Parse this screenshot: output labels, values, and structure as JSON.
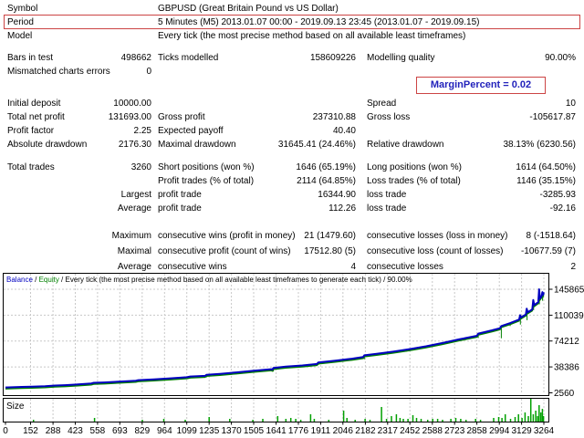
{
  "report": {
    "margin_note": "MarginPercent = 0.02",
    "sections": [
      {
        "rows": [
          {
            "l1": "Symbol",
            "v2l": "GBPUSD (Great Britain Pound vs US Dollar)"
          },
          {
            "l1": "Period",
            "v2l": "5 Minutes (M5) 2013.01.07 00:00 - 2019.09.13 23:45 (2013.01.07 - 2019.09.15)",
            "highlight": true
          },
          {
            "l1": "Model",
            "v2l": "Every tick (the most precise method based on all available least timeframes)"
          }
        ]
      },
      {
        "rows": [
          {
            "l1": "Bars in test",
            "v1": "498662",
            "l2": "Ticks modelled",
            "v2": "158609226",
            "l3": "Modelling quality",
            "v3": "90.00%"
          },
          {
            "l1": "Mismatched charts errors",
            "v1": "0"
          }
        ]
      },
      {
        "rows": [
          {
            "l1": "Initial deposit",
            "v1": "10000.00",
            "l3": "Spread",
            "v3": "10"
          },
          {
            "l1": "Total net profit",
            "v1": "131693.00",
            "l2": "Gross profit",
            "v2": "237310.88",
            "l3": "Gross loss",
            "v3": "-105617.87"
          },
          {
            "l1": "Profit factor",
            "v1": "2.25",
            "l2": "Expected payoff",
            "v2": "40.40"
          },
          {
            "l1": "Absolute drawdown",
            "v1": "2176.30",
            "l2": "Maximal drawdown",
            "v2": "31645.41 (24.46%)",
            "l3": "Relative drawdown",
            "v3": "38.13% (6230.56)"
          }
        ]
      },
      {
        "rows": [
          {
            "l1": "Total trades",
            "v1": "3260",
            "l2": "Short positions (won %)",
            "v2": "1646 (65.19%)",
            "l3": "Long positions (won %)",
            "v3": "1614 (64.50%)"
          },
          {
            "l2": "Profit trades (% of total)",
            "v2": "2114 (64.85%)",
            "l3": "Loss trades (% of total)",
            "v3": "1146 (35.15%)"
          },
          {
            "q": "Largest",
            "l2": "profit trade",
            "v2": "16344.90",
            "l3": "loss trade",
            "v3": "-3285.93"
          },
          {
            "q": "Average",
            "l2": "profit trade",
            "v2": "112.26",
            "l3": "loss trade",
            "v3": "-92.16"
          }
        ]
      },
      {
        "rows": [
          {
            "q": "Maximum",
            "l2": "consecutive wins (profit in money)",
            "v2": "21 (1479.60)",
            "l3": "consecutive losses (loss in money)",
            "v3": "8 (-1518.64)"
          },
          {
            "q": "Maximal",
            "l2": "consecutive profit (count of wins)",
            "v2": "17512.80 (5)",
            "l3": "consecutive loss (count of losses)",
            "v3": "-10677.59 (7)"
          },
          {
            "q": "Average",
            "l2": "consecutive wins",
            "v2": "4",
            "l3": "consecutive losses",
            "v3": "2"
          }
        ]
      }
    ]
  },
  "chart_data": {
    "type": "line",
    "legend": {
      "balance_label": "Balance",
      "equity_label": "Equity",
      "separator": " / ",
      "model_text": "Every tick (the most precise method based on all available least timeframes to generate each tick)",
      "quality": "90.00%"
    },
    "size_pane_label": "Size",
    "colors": {
      "balance": "#0000c0",
      "equity": "#008000",
      "size_bars": "#00a000",
      "grid": "#c8c8c8",
      "highlight_box": "#cc4444",
      "margin_text": "#2222bb"
    },
    "ylim": [
      2560,
      148000
    ],
    "xlim": [
      0,
      3264
    ],
    "y_ticks": [
      145865,
      110039,
      74212,
      38386,
      2560
    ],
    "x_ticks": [
      0,
      152,
      288,
      423,
      558,
      693,
      829,
      964,
      1099,
      1235,
      1370,
      1505,
      1641,
      1776,
      1911,
      2046,
      2182,
      2317,
      2452,
      2588,
      2723,
      2858,
      2994,
      3129,
      3264
    ],
    "series": [
      {
        "name": "Balance",
        "points": [
          [
            0,
            10000
          ],
          [
            100,
            10800
          ],
          [
            160,
            11000
          ],
          [
            240,
            11600
          ],
          [
            300,
            12600
          ],
          [
            360,
            13200
          ],
          [
            430,
            14100
          ],
          [
            520,
            15600
          ],
          [
            535,
            16400
          ],
          [
            600,
            17000
          ],
          [
            700,
            18200
          ],
          [
            790,
            19300
          ],
          [
            805,
            20100
          ],
          [
            900,
            21200
          ],
          [
            1000,
            22600
          ],
          [
            1100,
            24200
          ],
          [
            1120,
            25100
          ],
          [
            1210,
            26100
          ],
          [
            1218,
            27400
          ],
          [
            1300,
            28800
          ],
          [
            1400,
            30800
          ],
          [
            1500,
            33000
          ],
          [
            1610,
            35200
          ],
          [
            1618,
            34600
          ],
          [
            1624,
            37000
          ],
          [
            1700,
            38800
          ],
          [
            1800,
            40500
          ],
          [
            1888,
            42500
          ],
          [
            1896,
            44500
          ],
          [
            2000,
            47000
          ],
          [
            2100,
            49800
          ],
          [
            2168,
            52000
          ],
          [
            2176,
            54500
          ],
          [
            2250,
            56500
          ],
          [
            2350,
            59500
          ],
          [
            2450,
            63000
          ],
          [
            2550,
            67000
          ],
          [
            2650,
            71500
          ],
          [
            2750,
            76500
          ],
          [
            2858,
            81500
          ],
          [
            2866,
            84500
          ],
          [
            2950,
            89000
          ],
          [
            2998,
            92000
          ],
          [
            3006,
            95000
          ],
          [
            3060,
            99000
          ],
          [
            3114,
            104000
          ],
          [
            3120,
            110000
          ],
          [
            3126,
            107000
          ],
          [
            3155,
            111000
          ],
          [
            3160,
            119000
          ],
          [
            3166,
            114000
          ],
          [
            3194,
            118000
          ],
          [
            3200,
            131000
          ],
          [
            3206,
            124000
          ],
          [
            3230,
            128000
          ],
          [
            3235,
            145865
          ],
          [
            3241,
            133000
          ],
          [
            3250,
            136000
          ],
          [
            3255,
            142000
          ],
          [
            3259,
            138000
          ],
          [
            3264,
            141693
          ]
        ]
      },
      {
        "name": "Equity",
        "dips": [
          [
            270,
            11400,
            9900
          ],
          [
            530,
            16400,
            13900
          ],
          [
            790,
            19800,
            17800
          ],
          [
            1120,
            25100,
            22600
          ],
          [
            1218,
            27400,
            23900
          ],
          [
            1624,
            37000,
            32000
          ],
          [
            1896,
            44500,
            41000
          ],
          [
            2176,
            54500,
            49000
          ],
          [
            2430,
            62000,
            59500
          ],
          [
            2640,
            71000,
            69000
          ],
          [
            2790,
            78500,
            75500
          ],
          [
            2866,
            84500,
            78500
          ],
          [
            3006,
            95000,
            78000
          ],
          [
            3060,
            99000,
            95000
          ],
          [
            3122,
            110000,
            97000
          ],
          [
            3162,
            119000,
            103000
          ],
          [
            3202,
            131000,
            117000
          ],
          [
            3237,
            145865,
            125000
          ],
          [
            3256,
            142000,
            130000
          ]
        ]
      }
    ],
    "size_bars": [
      [
        170,
        2
      ],
      [
        540,
        4
      ],
      [
        830,
        2
      ],
      [
        960,
        3
      ],
      [
        1090,
        2
      ],
      [
        1235,
        5
      ],
      [
        1360,
        3
      ],
      [
        1500,
        2
      ],
      [
        1560,
        3
      ],
      [
        1650,
        6
      ],
      [
        1700,
        3
      ],
      [
        1730,
        4
      ],
      [
        1760,
        3
      ],
      [
        1790,
        2
      ],
      [
        1850,
        8
      ],
      [
        1872,
        3
      ],
      [
        1960,
        2
      ],
      [
        2050,
        12
      ],
      [
        2070,
        4
      ],
      [
        2120,
        2
      ],
      [
        2180,
        3
      ],
      [
        2210,
        2
      ],
      [
        2280,
        16
      ],
      [
        2310,
        3
      ],
      [
        2340,
        6
      ],
      [
        2370,
        8
      ],
      [
        2392,
        4
      ],
      [
        2412,
        3
      ],
      [
        2440,
        3
      ],
      [
        2470,
        7
      ],
      [
        2492,
        4
      ],
      [
        2520,
        3
      ],
      [
        2560,
        2
      ],
      [
        2590,
        3
      ],
      [
        2620,
        3
      ],
      [
        2650,
        2
      ],
      [
        2700,
        3
      ],
      [
        2730,
        4
      ],
      [
        2760,
        3
      ],
      [
        2792,
        2
      ],
      [
        2850,
        3
      ],
      [
        2880,
        2
      ],
      [
        2960,
        4
      ],
      [
        2990,
        5
      ],
      [
        3010,
        4
      ],
      [
        3030,
        8
      ],
      [
        3062,
        3
      ],
      [
        3090,
        5
      ],
      [
        3110,
        8
      ],
      [
        3132,
        4
      ],
      [
        3150,
        10
      ],
      [
        3170,
        6
      ],
      [
        3185,
        25
      ],
      [
        3200,
        8
      ],
      [
        3215,
        12
      ],
      [
        3226,
        6
      ],
      [
        3235,
        18
      ],
      [
        3246,
        10
      ],
      [
        3255,
        14
      ],
      [
        3262,
        6
      ]
    ]
  }
}
